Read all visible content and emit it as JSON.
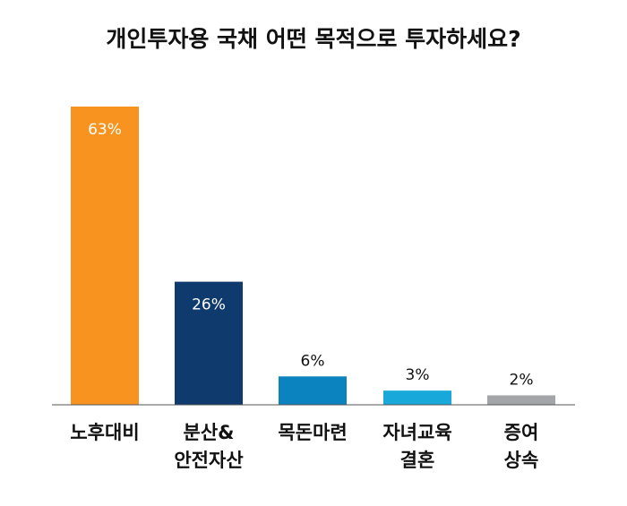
{
  "chart_data": {
    "type": "bar",
    "title": "개인투자용 국채 어떤 목적으로 투자하세요?",
    "xlabel": "",
    "ylabel": "",
    "categories": [
      [
        "노후대비"
      ],
      [
        "분산&",
        "안전자산"
      ],
      [
        "목돈마련"
      ],
      [
        "자녀교육",
        "결혼"
      ],
      [
        "증여",
        "상속"
      ]
    ],
    "values": [
      63,
      26,
      6,
      3,
      2
    ],
    "data_labels": [
      "63%",
      "26%",
      "6%",
      "3%",
      "2%"
    ],
    "colors": [
      "#F7931E",
      "#0F3A6E",
      "#0A83BE",
      "#18A8DA",
      "#A3A5A8"
    ],
    "label_inside": [
      true,
      true,
      false,
      false,
      false
    ],
    "ylim": [
      0,
      63
    ],
    "grid": false,
    "legend": "none"
  }
}
